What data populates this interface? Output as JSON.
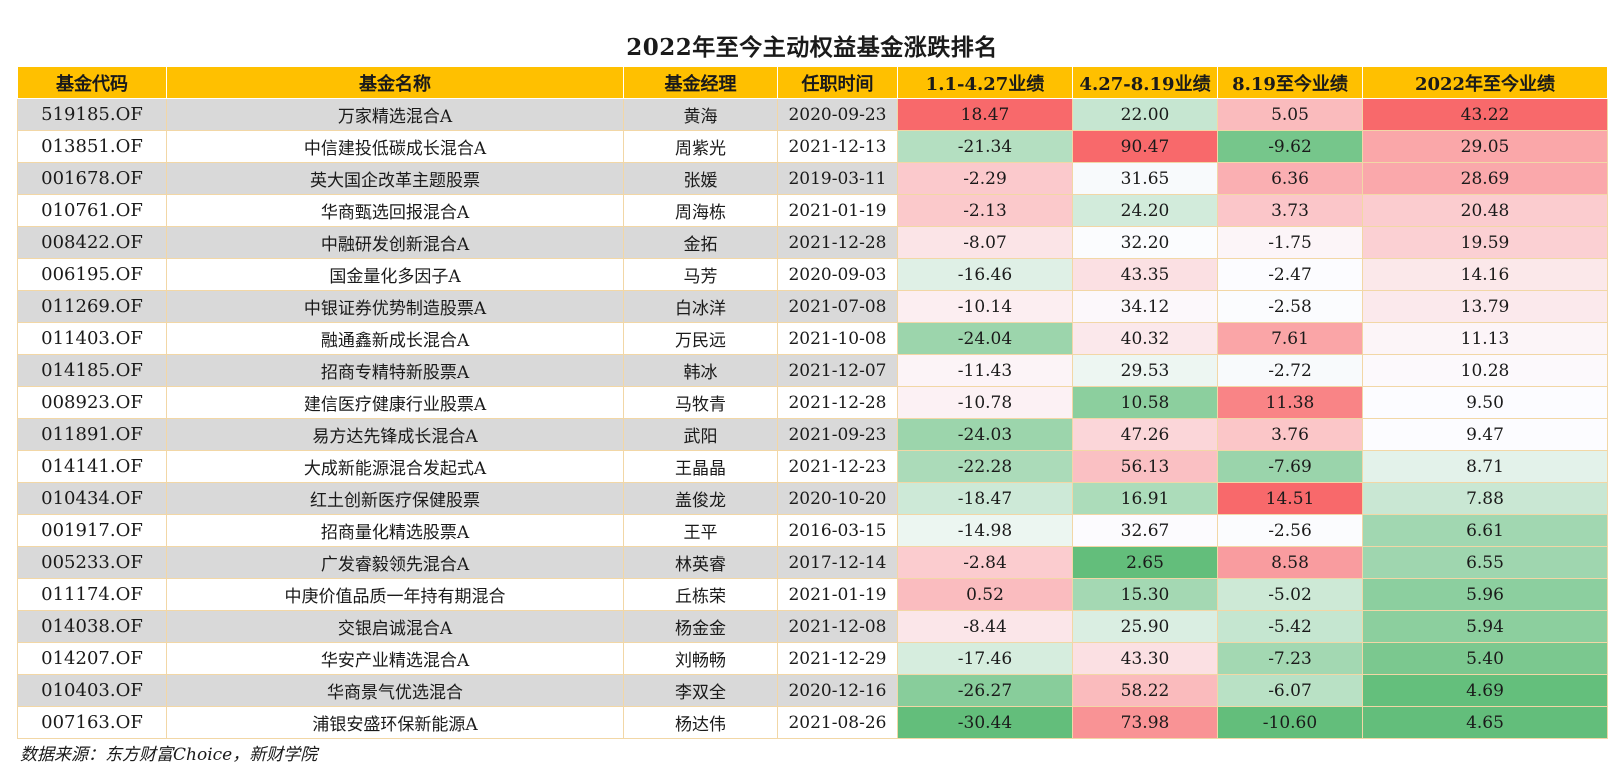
{
  "title": "2022年至今主动权益基金涨跌排名",
  "source": "数据来源：东方财富Choice，新财学院",
  "headers": [
    "基金代码",
    "基金名称",
    "基金经理",
    "任职时间",
    "1.1-4.27业绩",
    "4.27-8.19业绩",
    "8.19至今业绩",
    "2022年至今业绩"
  ],
  "rows": [
    [
      "519185.OF",
      "万家精选混合A",
      "黄海",
      "2020-09-23",
      "18.47",
      "22.00",
      "5.05",
      "43.22"
    ],
    [
      "013851.OF",
      "中信建投低碳成长混合A",
      "周紫光",
      "2021-12-13",
      "-21.34",
      "90.47",
      "-9.62",
      "29.05"
    ],
    [
      "001678.OF",
      "英大国企改革主题股票",
      "张媛",
      "2019-03-11",
      "-2.29",
      "31.65",
      "6.36",
      "28.69"
    ],
    [
      "010761.OF",
      "华商甄选回报混合A",
      "周海栋",
      "2021-01-19",
      "-2.13",
      "24.20",
      "3.73",
      "20.48"
    ],
    [
      "008422.OF",
      "中融研发创新混合A",
      "金拓",
      "2021-12-28",
      "-8.07",
      "32.20",
      "-1.75",
      "19.59"
    ],
    [
      "006195.OF",
      "国金量化多因子A",
      "马芳",
      "2020-09-03",
      "-16.46",
      "43.35",
      "-2.47",
      "14.16"
    ],
    [
      "011269.OF",
      "中银证券优势制造股票A",
      "白冰洋",
      "2021-07-08",
      "-10.14",
      "34.12",
      "-2.58",
      "13.79"
    ],
    [
      "011403.OF",
      "融通鑫新成长混合A",
      "万民远",
      "2021-10-08",
      "-24.04",
      "40.32",
      "7.61",
      "11.13"
    ],
    [
      "014185.OF",
      "招商专精特新股票A",
      "韩冰",
      "2021-12-07",
      "-11.43",
      "29.53",
      "-2.72",
      "10.28"
    ],
    [
      "008923.OF",
      "建信医疗健康行业股票A",
      "马牧青",
      "2021-12-28",
      "-10.78",
      "10.58",
      "11.38",
      "9.50"
    ],
    [
      "011891.OF",
      "易方达先锋成长混合A",
      "武阳",
      "2021-09-23",
      "-24.03",
      "47.26",
      "3.76",
      "9.47"
    ],
    [
      "014141.OF",
      "大成新能源混合发起式A",
      "王晶晶",
      "2021-12-23",
      "-22.28",
      "56.13",
      "-7.69",
      "8.71"
    ],
    [
      "010434.OF",
      "红土创新医疗保健股票",
      "盖俊龙",
      "2020-10-20",
      "-18.47",
      "16.91",
      "14.51",
      "7.88"
    ],
    [
      "001917.OF",
      "招商量化精选股票A",
      "王平",
      "2016-03-15",
      "-14.98",
      "32.67",
      "-2.56",
      "6.61"
    ],
    [
      "005233.OF",
      "广发睿毅领先混合A",
      "林英睿",
      "2017-12-14",
      "-2.84",
      "2.65",
      "8.58",
      "6.55"
    ],
    [
      "011174.OF",
      "中庚价值品质一年持有期混合",
      "丘栋荣",
      "2021-01-19",
      "0.52",
      "15.30",
      "-5.02",
      "5.96"
    ],
    [
      "014038.OF",
      "交银启诚混合A",
      "杨金金",
      "2021-12-08",
      "-8.44",
      "25.90",
      "-5.42",
      "5.94"
    ],
    [
      "014207.OF",
      "华安产业精选混合A",
      "刘畅畅",
      "2021-12-29",
      "-17.46",
      "43.30",
      "-7.23",
      "5.40"
    ],
    [
      "010403.OF",
      "华商景气优选混合",
      "李双全",
      "2020-12-16",
      "-26.27",
      "58.22",
      "-6.07",
      "4.69"
    ],
    [
      "007163.OF",
      "浦银安盛环保新能源A",
      "杨达伟",
      "2021-08-26",
      "-30.44",
      "73.98",
      "-10.60",
      "4.65"
    ]
  ],
  "colors": {
    "header_bg": "#ffc000",
    "stripe_gray": "#d9d9d9",
    "heat_red": "#f8696b",
    "heat_white": "#fcfcff",
    "heat_green": "#63be7b"
  }
}
